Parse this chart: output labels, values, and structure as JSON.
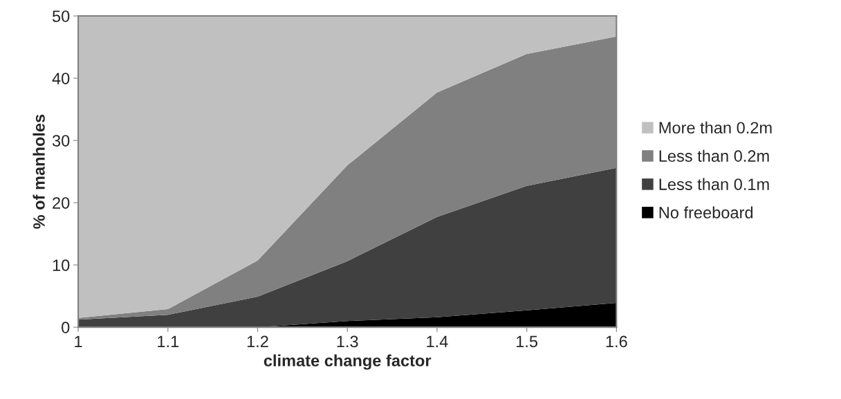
{
  "chart_data": {
    "type": "area",
    "stacked": true,
    "xlabel": "climate change factor",
    "ylabel": "% of manholes",
    "x": [
      1,
      1.1,
      1.2,
      1.3,
      1.4,
      1.5,
      1.6
    ],
    "xlim": [
      1,
      1.6
    ],
    "xticks": [
      1,
      {
        "value": 1.1,
        "label": "1.1"
      },
      {
        "value": 1.2,
        "label": "1.2"
      },
      {
        "value": 1.3,
        "label": "1.3"
      },
      {
        "value": 1.4,
        "label": "1.4"
      },
      {
        "value": 1.5,
        "label": "1.5"
      },
      {
        "value": 1.6,
        "label": "1.6"
      }
    ],
    "ylim": [
      0,
      50
    ],
    "yticks": [
      0,
      10,
      20,
      30,
      40,
      50
    ],
    "grid": false,
    "legend": "right",
    "series": [
      {
        "name": "No freeboard",
        "color": "#000000",
        "values": [
          0,
          0,
          0,
          1.0,
          1.6,
          2.7,
          3.9
        ]
      },
      {
        "name": "Less than 0.1m",
        "color": "#404040",
        "values": [
          1.2,
          2.0,
          4.9,
          9.6,
          16.1,
          20.0,
          21.7
        ]
      },
      {
        "name": "Less than 0.2m",
        "color": "#808080",
        "values": [
          0.3,
          0.9,
          5.8,
          15.4,
          20.0,
          21.2,
          21.1
        ]
      },
      {
        "name": "More than 0.2m",
        "color": "#c0c0c0",
        "values": [
          48.5,
          47.1,
          39.3,
          24.0,
          12.3,
          6.1,
          3.3
        ]
      }
    ]
  }
}
